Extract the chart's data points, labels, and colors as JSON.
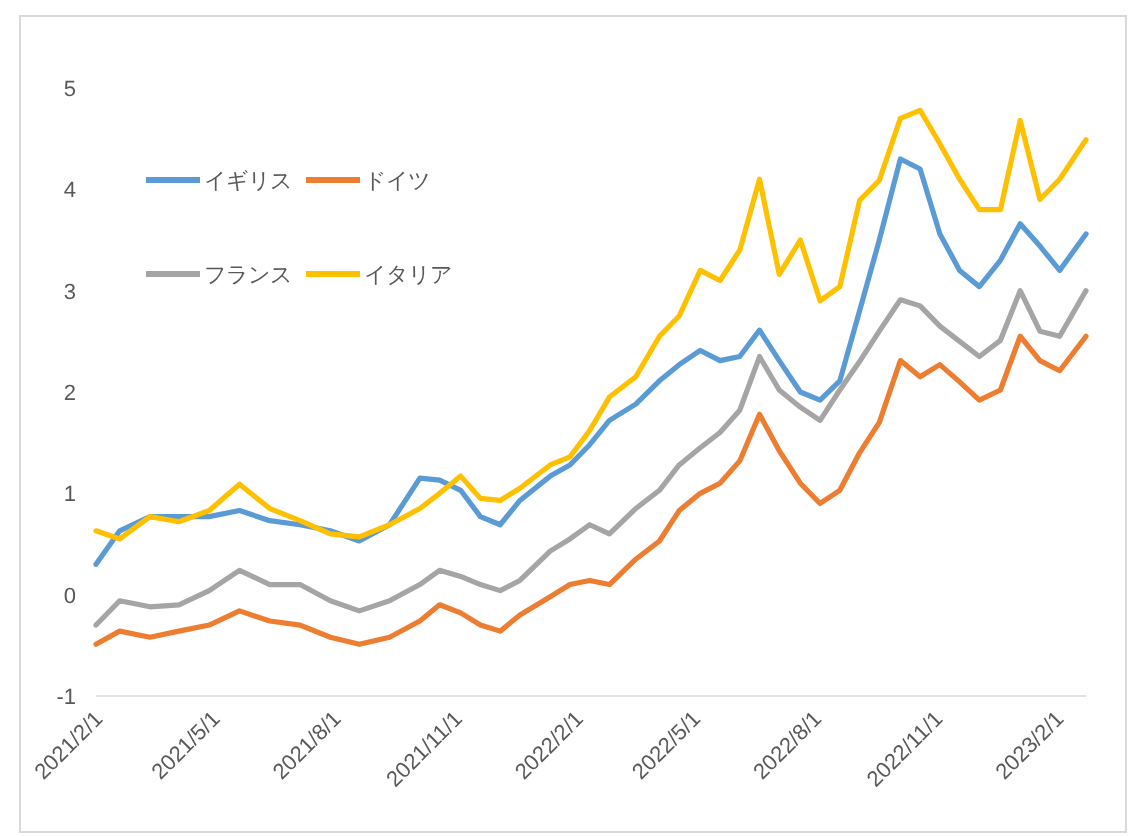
{
  "chart_data": {
    "type": "line",
    "x": [
      "2021-02-01",
      "2021-02-19",
      "2021-03-14",
      "2021-04-05",
      "2021-04-28",
      "2021-05-21",
      "2021-06-13",
      "2021-07-06",
      "2021-07-29",
      "2021-08-20",
      "2021-09-12",
      "2021-10-05",
      "2021-10-20",
      "2021-11-05",
      "2021-11-20",
      "2021-12-05",
      "2021-12-20",
      "2022-01-12",
      "2022-01-27",
      "2022-02-11",
      "2022-02-26",
      "2022-03-18",
      "2022-04-05",
      "2022-04-20",
      "2022-05-06",
      "2022-05-21",
      "2022-06-05",
      "2022-06-20",
      "2022-07-05",
      "2022-07-21",
      "2022-08-05",
      "2022-08-20",
      "2022-09-04",
      "2022-09-19",
      "2022-10-05",
      "2022-10-20",
      "2022-11-04",
      "2022-11-19",
      "2022-12-04",
      "2022-12-20",
      "2023-01-04",
      "2023-01-19",
      "2023-02-03",
      "2023-02-23"
    ],
    "series": [
      {
        "name": "イギリス",
        "color": "#5b9bd5",
        "values": [
          0.3,
          0.63,
          0.77,
          0.77,
          0.77,
          0.83,
          0.73,
          0.69,
          0.63,
          0.53,
          0.69,
          1.15,
          1.13,
          1.03,
          0.77,
          0.69,
          0.93,
          1.17,
          1.28,
          1.48,
          1.72,
          1.88,
          2.11,
          2.27,
          2.41,
          2.31,
          2.35,
          2.61,
          2.31,
          2.0,
          1.92,
          2.11,
          2.8,
          3.5,
          4.3,
          4.2,
          3.56,
          3.2,
          3.04,
          3.3,
          3.66,
          3.44,
          3.2,
          3.56
        ]
      },
      {
        "name": "ドイツ",
        "color": "#ed7d31",
        "values": [
          -0.49,
          -0.36,
          -0.42,
          -0.36,
          -0.3,
          -0.16,
          -0.26,
          -0.3,
          -0.42,
          -0.49,
          -0.42,
          -0.26,
          -0.1,
          -0.18,
          -0.3,
          -0.36,
          -0.2,
          -0.02,
          0.1,
          0.14,
          0.1,
          0.35,
          0.53,
          0.83,
          1.0,
          1.1,
          1.32,
          1.78,
          1.42,
          1.1,
          0.9,
          1.03,
          1.4,
          1.7,
          2.31,
          2.15,
          2.27,
          2.1,
          1.92,
          2.02,
          2.55,
          2.31,
          2.21,
          2.55
        ]
      },
      {
        "name": "フランス",
        "color": "#a5a5a5",
        "values": [
          -0.3,
          -0.06,
          -0.12,
          -0.1,
          0.04,
          0.24,
          0.1,
          0.1,
          -0.06,
          -0.16,
          -0.06,
          0.1,
          0.24,
          0.18,
          0.1,
          0.04,
          0.14,
          0.43,
          0.55,
          0.69,
          0.6,
          0.85,
          1.03,
          1.28,
          1.45,
          1.6,
          1.82,
          2.35,
          2.02,
          1.85,
          1.72,
          2.02,
          2.3,
          2.6,
          2.91,
          2.85,
          2.65,
          2.5,
          2.35,
          2.51,
          3.0,
          2.6,
          2.55,
          3.0
        ]
      },
      {
        "name": "イタリア",
        "color": "#ffc000",
        "values": [
          0.63,
          0.55,
          0.77,
          0.72,
          0.83,
          1.09,
          0.85,
          0.73,
          0.6,
          0.57,
          0.69,
          0.85,
          1.0,
          1.17,
          0.95,
          0.93,
          1.05,
          1.28,
          1.36,
          1.62,
          1.95,
          2.15,
          2.55,
          2.75,
          3.2,
          3.1,
          3.4,
          4.1,
          3.16,
          3.5,
          2.9,
          3.04,
          3.89,
          4.09,
          4.7,
          4.78,
          4.45,
          4.1,
          3.8,
          3.8,
          4.68,
          3.9,
          4.1,
          4.49
        ]
      }
    ],
    "xticks": [
      {
        "value": "2021-02-01",
        "label": "2021/2/1"
      },
      {
        "value": "2021-05-01",
        "label": "2021/5/1"
      },
      {
        "value": "2021-08-01",
        "label": "2021/8/1"
      },
      {
        "value": "2021-11-01",
        "label": "2021/11/1"
      },
      {
        "value": "2022-02-01",
        "label": "2022/2/1"
      },
      {
        "value": "2022-05-01",
        "label": "2022/5/1"
      },
      {
        "value": "2022-08-01",
        "label": "2022/8/1"
      },
      {
        "value": "2022-11-01",
        "label": "2022/11/1"
      },
      {
        "value": "2023-02-01",
        "label": "2023/2/1"
      }
    ],
    "xlim": [
      "2021-02-01",
      "2023-02-23"
    ],
    "ylim": [
      -1,
      5
    ],
    "yticks": [
      -1,
      0,
      1,
      2,
      3,
      4,
      5
    ],
    "legend": "top left",
    "line_style": "solid",
    "marker": "none"
  }
}
